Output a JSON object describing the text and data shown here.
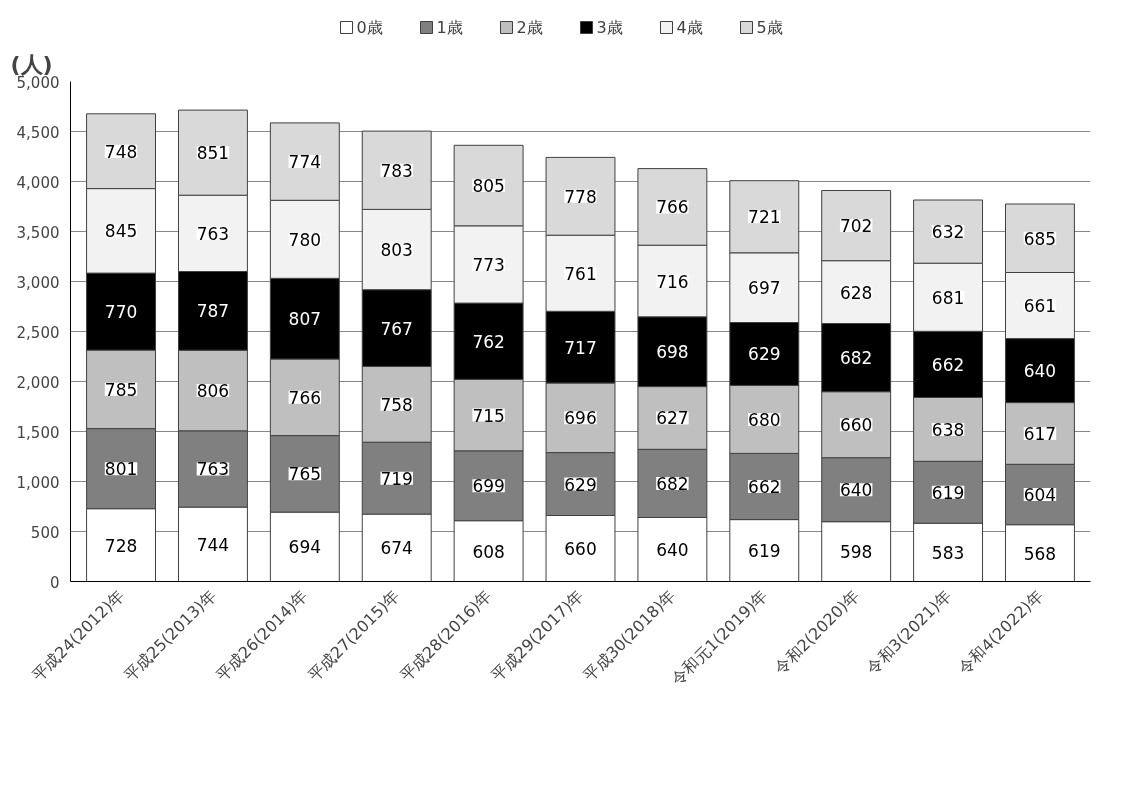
{
  "chart_data": {
    "type": "bar",
    "stacked": true,
    "ylabel": "(人)",
    "categories": [
      "平成24(2012)年",
      "平成25(2013)年",
      "平成26(2014)年",
      "平成27(2015)年",
      "平成28(2016)年",
      "平成29(2017)年",
      "平成30(2018)年",
      "令和元1(2019)年",
      "令和2(2020)年",
      "令和3(2021)年",
      "令和4(2022)年"
    ],
    "series": [
      {
        "name": "0歳",
        "color": "#ffffff",
        "values": [
          728,
          744,
          694,
          674,
          608,
          660,
          640,
          619,
          598,
          583,
          568
        ]
      },
      {
        "name": "1歳",
        "color": "#808080",
        "values": [
          801,
          763,
          765,
          719,
          699,
          629,
          682,
          662,
          640,
          619,
          604
        ]
      },
      {
        "name": "2歳",
        "color": "#bfbfbf",
        "values": [
          785,
          806,
          766,
          758,
          715,
          696,
          627,
          680,
          660,
          638,
          617
        ]
      },
      {
        "name": "3歳",
        "color": "#000000",
        "values": [
          770,
          787,
          807,
          767,
          762,
          717,
          698,
          629,
          682,
          662,
          640
        ]
      },
      {
        "name": "4歳",
        "color": "#f2f2f2",
        "values": [
          845,
          763,
          780,
          803,
          773,
          761,
          716,
          697,
          628,
          681,
          661
        ]
      },
      {
        "name": "5歳",
        "color": "#d9d9d9",
        "values": [
          748,
          851,
          774,
          783,
          805,
          778,
          766,
          721,
          702,
          632,
          685
        ]
      }
    ],
    "ylim": [
      0,
      5000
    ],
    "yticks": [
      0,
      {
        "value": 500,
        "label": "500"
      },
      {
        "value": 1000,
        "label": "1,000"
      },
      {
        "value": 1500,
        "label": "1,500"
      },
      {
        "value": 2000,
        "label": "2,000"
      },
      {
        "value": 2500,
        "label": "2,500"
      },
      {
        "value": 3000,
        "label": "3,000"
      },
      {
        "value": 3500,
        "label": "3,500"
      },
      {
        "value": 4000,
        "label": "4,000"
      },
      {
        "value": 4500,
        "label": "4,500"
      },
      {
        "value": 5000,
        "label": "5,000"
      }
    ],
    "grid": "y",
    "legend": "top",
    "data_labels": true
  }
}
